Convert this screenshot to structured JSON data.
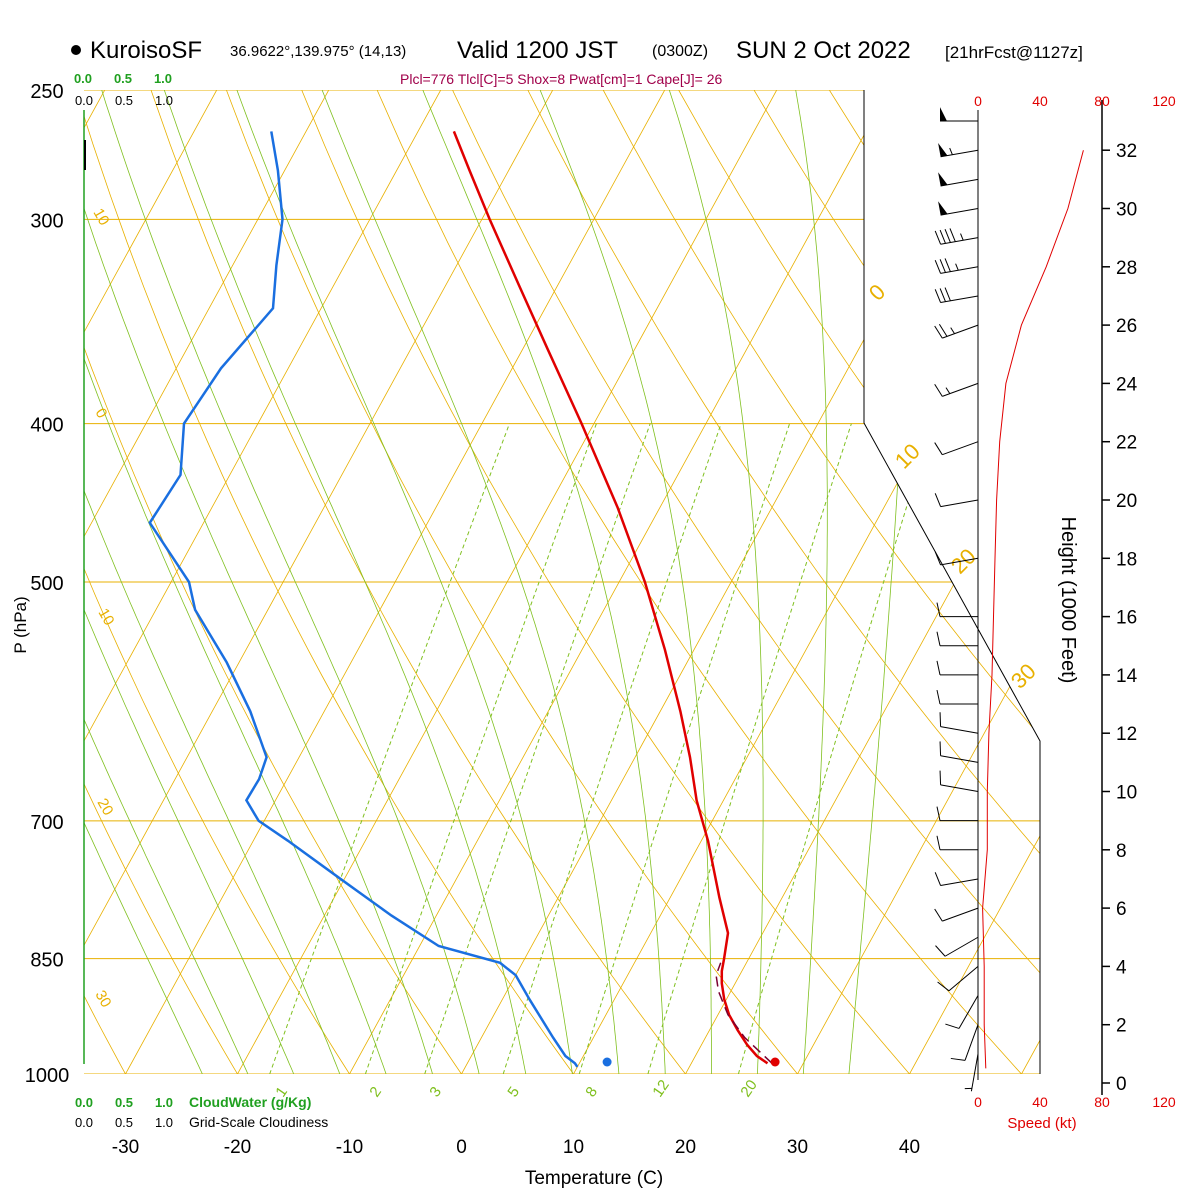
{
  "header": {
    "model": "KuroisoSF",
    "coords": "36.9622°,139.975° (14,13)",
    "valid": "Valid 1200 JST",
    "zulu": "(0300Z)",
    "date": "SUN 2 Oct 2022",
    "forecast": "[21hrFcst@1127z]",
    "params": "Plcl=776 Tlcl[C]=5 Shox=8 Pwat[cm]=1 Cape[J]= 26"
  },
  "colors": {
    "temperature": "#e00000",
    "dewpoint": "#1a6fe0",
    "parcel": "#7a0030",
    "isobar": "#e8b000",
    "mixing_ratio": "#80c020",
    "cloudwater": "#20a020",
    "params_text": "#a0004a",
    "speed": "#e00000"
  },
  "chart_data": {
    "type": "line",
    "title": "",
    "xlabel": "Temperature (C)",
    "ylabel": "P (hPa)",
    "x_ticks": [
      -30,
      -20,
      -10,
      0,
      10,
      20,
      30,
      40
    ],
    "pressure_levels": [
      250,
      300,
      400,
      500,
      700,
      850,
      1000
    ],
    "ylim": [
      1000,
      250
    ],
    "y_scale": "log",
    "skew": true,
    "series": [
      {
        "name": "",
        "role": "temperature",
        "pressure": [
          985,
          975,
          960,
          940,
          920,
          900,
          880,
          865,
          850,
          820,
          780,
          720,
          680,
          640,
          600,
          550,
          500,
          450,
          400,
          360,
          330,
          300,
          280,
          265
        ],
        "temp_c": [
          26.8,
          25.5,
          24.1,
          22.5,
          21.0,
          19.8,
          18.8,
          18.2,
          17.8,
          16.9,
          14.4,
          10.6,
          7.6,
          4.9,
          1.8,
          -2.6,
          -7.7,
          -13.8,
          -21.1,
          -27.8,
          -33.3,
          -39.3,
          -43.5,
          -46.8
        ]
      },
      {
        "name": "",
        "role": "dewpoint",
        "pressure": [
          990,
          985,
          975,
          950,
          900,
          870,
          855,
          835,
          800,
          760,
          720,
          700,
          680,
          660,
          640,
          600,
          560,
          520,
          500,
          460,
          430,
          400,
          370,
          340,
          320,
          300,
          280,
          265
        ],
        "temp_c": [
          10.0,
          9.6,
          8.4,
          6.4,
          2.4,
          0.0,
          -2.0,
          -8.3,
          -14.0,
          -20.3,
          -26.9,
          -30.5,
          -32.6,
          -32.5,
          -32.9,
          -36.6,
          -41.1,
          -46.5,
          -48.4,
          -54.8,
          -54.4,
          -56.6,
          -56.0,
          -54.3,
          -56.1,
          -57.8,
          -60.6,
          -63.1
        ]
      },
      {
        "name": "",
        "role": "parcel",
        "pressure": [
          985,
          950,
          920,
          890,
          870,
          855
        ],
        "temp_c": [
          27.2,
          23.5,
          20.9,
          18.9,
          17.9,
          17.7
        ]
      }
    ],
    "surface_temp_c": 28,
    "surface_dewpoint_c": 13,
    "isotherm_labels": [
      "-30",
      "-20",
      "-10",
      "0",
      "10",
      "20",
      "30"
    ],
    "left_isotherm_labels": [
      "10",
      "0",
      "10",
      "20",
      "30"
    ],
    "mixing_ratio_labels": [
      "1",
      "2",
      "3",
      "5",
      "8",
      "12",
      "20"
    ],
    "cloudiness_scale": [
      "0.0",
      "0.5",
      "1.0"
    ],
    "cloudwater_label": "CloudWater (g/Kg)",
    "cloudiness_label": "Grid-Scale Cloudiness",
    "height_axis": {
      "label": "Height (1000 Feet)",
      "ticks": [
        "0",
        "2",
        "4",
        "6",
        "8",
        "10",
        "12",
        "14",
        "16",
        "18",
        "20",
        "22",
        "24",
        "26",
        "28",
        "30",
        "32"
      ]
    },
    "speed_axis": {
      "label": "Speed (kt)",
      "ticks": [
        "0",
        "40",
        "80",
        "120"
      ]
    },
    "wind_speed_profile": {
      "height_kft": [
        0.5,
        2,
        4,
        6,
        8,
        10,
        12,
        14,
        16,
        18,
        20,
        22,
        24,
        26,
        28,
        30,
        32
      ],
      "speed_kt": [
        5,
        4,
        4,
        3,
        6,
        6,
        7,
        9,
        10,
        11,
        12,
        14,
        18,
        28,
        44,
        58,
        68
      ]
    },
    "wind_barbs": {
      "height_kft": [
        1,
        2,
        3,
        4,
        5,
        6,
        7,
        8,
        9,
        10,
        11,
        12,
        13,
        14,
        15,
        16,
        18,
        20,
        22,
        24,
        26,
        27,
        28,
        29,
        30,
        31,
        32,
        33
      ],
      "speed_kt": [
        5,
        10,
        10,
        10,
        10,
        10,
        10,
        10,
        10,
        10,
        10,
        10,
        10,
        10,
        10,
        10,
        10,
        10,
        10,
        15,
        25,
        30,
        35,
        45,
        50,
        50,
        55,
        50
      ],
      "dir_deg": [
        190,
        200,
        210,
        230,
        240,
        250,
        260,
        270,
        270,
        280,
        280,
        280,
        270,
        270,
        270,
        270,
        260,
        260,
        250,
        250,
        250,
        260,
        260,
        260,
        260,
        260,
        260,
        270
      ]
    }
  }
}
